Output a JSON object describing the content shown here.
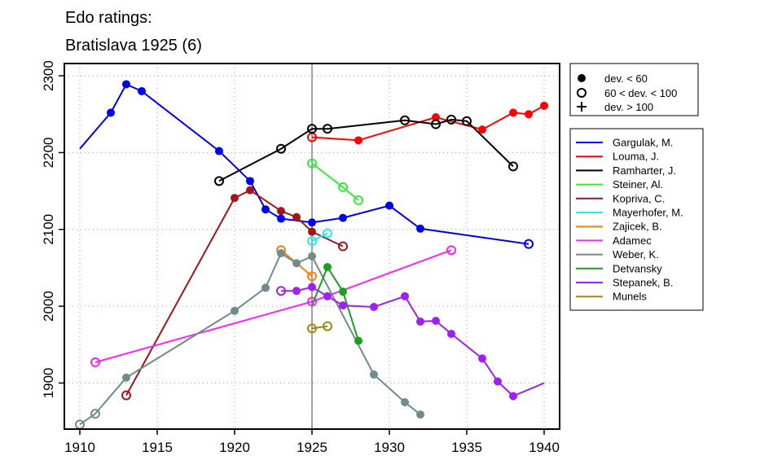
{
  "chart_data": {
    "type": "line",
    "title_lines": [
      "Edo ratings:",
      "Bratislava 1925 (6)"
    ],
    "xlabel": "",
    "ylabel": "",
    "xlim": [
      1909,
      1941
    ],
    "ylim": [
      1840,
      2316
    ],
    "x_ticks": [
      1910,
      1915,
      1920,
      1925,
      1930,
      1935,
      1940
    ],
    "y_ticks": [
      1900,
      2000,
      2100,
      2200,
      2300
    ],
    "grid": true,
    "reference_x": 1925,
    "marker_legend": [
      {
        "marker": "filled",
        "label": "dev. < 60"
      },
      {
        "marker": "open",
        "label": "60 < dev. < 100"
      },
      {
        "marker": "plus",
        "label": "dev. > 100"
      }
    ],
    "series": [
      {
        "name": "Gargulak, M.",
        "color": "#0000ee",
        "points": [
          {
            "x": 1910,
            "y": 2205,
            "m": "none"
          },
          {
            "x": 1912,
            "y": 2252,
            "m": "filled"
          },
          {
            "x": 1913,
            "y": 2289,
            "m": "filled"
          },
          {
            "x": 1914,
            "y": 2280,
            "m": "filled"
          },
          {
            "x": 1919,
            "y": 2202,
            "m": "filled"
          },
          {
            "x": 1921,
            "y": 2163,
            "m": "filled"
          },
          {
            "x": 1922,
            "y": 2126,
            "m": "filled"
          },
          {
            "x": 1923,
            "y": 2114,
            "m": "filled"
          },
          {
            "x": 1925,
            "y": 2109,
            "m": "filled"
          },
          {
            "x": 1927,
            "y": 2115,
            "m": "filled"
          },
          {
            "x": 1930,
            "y": 2131,
            "m": "filled"
          },
          {
            "x": 1932,
            "y": 2101,
            "m": "filled"
          },
          {
            "x": 1939,
            "y": 2081,
            "m": "open"
          }
        ]
      },
      {
        "name": "Louma, J.",
        "color": "#ff0000",
        "points": [
          {
            "x": 1925,
            "y": 2220,
            "m": "open"
          },
          {
            "x": 1928,
            "y": 2216,
            "m": "filled"
          },
          {
            "x": 1933,
            "y": 2246,
            "m": "filled"
          },
          {
            "x": 1936,
            "y": 2230,
            "m": "filled"
          },
          {
            "x": 1938,
            "y": 2252,
            "m": "filled"
          },
          {
            "x": 1939,
            "y": 2250,
            "m": "filled"
          },
          {
            "x": 1940,
            "y": 2261,
            "m": "filled"
          }
        ]
      },
      {
        "name": "Ramharter, J.",
        "color": "#000000",
        "points": [
          {
            "x": 1919,
            "y": 2163,
            "m": "open"
          },
          {
            "x": 1923,
            "y": 2205,
            "m": "open"
          },
          {
            "x": 1925,
            "y": 2231,
            "m": "open"
          },
          {
            "x": 1926,
            "y": 2231,
            "m": "open"
          },
          {
            "x": 1931,
            "y": 2242,
            "m": "open"
          },
          {
            "x": 1933,
            "y": 2237,
            "m": "open"
          },
          {
            "x": 1934,
            "y": 2243,
            "m": "open"
          },
          {
            "x": 1935,
            "y": 2241,
            "m": "open"
          },
          {
            "x": 1938,
            "y": 2182,
            "m": "open"
          }
        ]
      },
      {
        "name": "Steiner, Al.",
        "color": "#33ee33",
        "points": [
          {
            "x": 1925,
            "y": 2186,
            "m": "open"
          },
          {
            "x": 1927,
            "y": 2155,
            "m": "open"
          },
          {
            "x": 1928,
            "y": 2138,
            "m": "open"
          }
        ]
      },
      {
        "name": "Kopriva, C.",
        "color": "#a0161a",
        "points": [
          {
            "x": 1913,
            "y": 1884,
            "m": "open"
          },
          {
            "x": 1920,
            "y": 2141,
            "m": "filled"
          },
          {
            "x": 1921,
            "y": 2151,
            "m": "filled"
          },
          {
            "x": 1923,
            "y": 2124,
            "m": "filled"
          },
          {
            "x": 1924,
            "y": 2116,
            "m": "filled"
          },
          {
            "x": 1925,
            "y": 2097,
            "m": "filled"
          },
          {
            "x": 1927,
            "y": 2078,
            "m": "open"
          }
        ]
      },
      {
        "name": "Mayerhofer, M.",
        "color": "#22eeee",
        "points": [
          {
            "x": 1925,
            "y": 2085,
            "m": "open"
          },
          {
            "x": 1926,
            "y": 2095,
            "m": "open"
          }
        ]
      },
      {
        "name": "Zajicek, B.",
        "color": "#ff7f0e",
        "points": [
          {
            "x": 1923,
            "y": 2073,
            "m": "open"
          },
          {
            "x": 1925,
            "y": 2039,
            "m": "open"
          }
        ]
      },
      {
        "name": "Adamec",
        "color": "#ff22ff",
        "points": [
          {
            "x": 1911,
            "y": 1927,
            "m": "open"
          },
          {
            "x": 1925,
            "y": 2006,
            "m": "open"
          },
          {
            "x": 1934,
            "y": 2073,
            "m": "open"
          }
        ]
      },
      {
        "name": "Weber, K.",
        "color": "#718a8c",
        "points": [
          {
            "x": 1910,
            "y": 1846,
            "m": "open"
          },
          {
            "x": 1911,
            "y": 1860,
            "m": "open"
          },
          {
            "x": 1913,
            "y": 1907,
            "m": "filled"
          },
          {
            "x": 1920,
            "y": 1994,
            "m": "filled"
          },
          {
            "x": 1922,
            "y": 2024,
            "m": "filled"
          },
          {
            "x": 1923,
            "y": 2069,
            "m": "filled"
          },
          {
            "x": 1924,
            "y": 2056,
            "m": "filled"
          },
          {
            "x": 1925,
            "y": 2065,
            "m": "filled"
          },
          {
            "x": 1929,
            "y": 1911,
            "m": "filled"
          },
          {
            "x": 1931,
            "y": 1875,
            "m": "filled"
          },
          {
            "x": 1932,
            "y": 1859,
            "m": "filled"
          }
        ]
      },
      {
        "name": "Detvansky",
        "color": "#1aa020",
        "points": [
          {
            "x": 1925,
            "y": 2001,
            "m": "none"
          },
          {
            "x": 1926,
            "y": 2051,
            "m": "filled"
          },
          {
            "x": 1927,
            "y": 2019,
            "m": "filled"
          },
          {
            "x": 1928,
            "y": 1955,
            "m": "filled"
          }
        ]
      },
      {
        "name": "Stepanek, B.",
        "color": "#a020f0",
        "points": [
          {
            "x": 1923,
            "y": 2020,
            "m": "open"
          },
          {
            "x": 1924,
            "y": 2020,
            "m": "filled"
          },
          {
            "x": 1925,
            "y": 2025,
            "m": "filled"
          },
          {
            "x": 1926,
            "y": 2013,
            "m": "filled"
          },
          {
            "x": 1927,
            "y": 2001,
            "m": "filled"
          },
          {
            "x": 1929,
            "y": 1999,
            "m": "filled"
          },
          {
            "x": 1931,
            "y": 2013,
            "m": "filled"
          },
          {
            "x": 1932,
            "y": 1980,
            "m": "filled"
          },
          {
            "x": 1933,
            "y": 1981,
            "m": "filled"
          },
          {
            "x": 1934,
            "y": 1964,
            "m": "filled"
          },
          {
            "x": 1936,
            "y": 1932,
            "m": "filled"
          },
          {
            "x": 1937,
            "y": 1902,
            "m": "filled"
          },
          {
            "x": 1938,
            "y": 1883,
            "m": "filled"
          },
          {
            "x": 1940,
            "y": 1900,
            "m": "none"
          }
        ]
      },
      {
        "name": "Munels",
        "color": "#9a8a10",
        "points": [
          {
            "x": 1925,
            "y": 1971,
            "m": "open"
          },
          {
            "x": 1926,
            "y": 1974,
            "m": "open"
          }
        ]
      }
    ]
  }
}
